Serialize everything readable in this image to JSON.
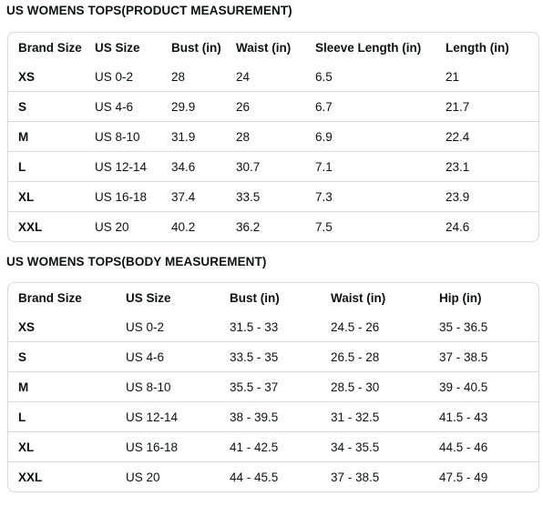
{
  "product": {
    "title": "US WOMENS TOPS(PRODUCT MEASUREMENT)",
    "headers": [
      "Brand Size",
      "US Size",
      "Bust (in)",
      "Waist (in)",
      "Sleeve Length (in)",
      "Length (in)"
    ],
    "rows": [
      [
        "XS",
        "US 0-2",
        "28",
        "24",
        "6.5",
        "21"
      ],
      [
        "S",
        "US 4-6",
        "29.9",
        "26",
        "6.7",
        "21.7"
      ],
      [
        "M",
        "US 8-10",
        "31.9",
        "28",
        "6.9",
        "22.4"
      ],
      [
        "L",
        "US 12-14",
        "34.6",
        "30.7",
        "7.1",
        "23.1"
      ],
      [
        "XL",
        "US 16-18",
        "37.4",
        "33.5",
        "7.3",
        "23.9"
      ],
      [
        "XXL",
        "US 20",
        "40.2",
        "36.2",
        "7.5",
        "24.6"
      ]
    ]
  },
  "body": {
    "title": "US WOMENS TOPS(BODY MEASUREMENT)",
    "headers": [
      "Brand Size",
      "US Size",
      "Bust (in)",
      "Waist (in)",
      "Hip (in)"
    ],
    "rows": [
      [
        "XS",
        "US 0-2",
        "31.5 - 33",
        "24.5 - 26",
        "35 - 36.5"
      ],
      [
        "S",
        "US 4-6",
        "33.5 - 35",
        "26.5 - 28",
        "37 - 38.5"
      ],
      [
        "M",
        "US 8-10",
        "35.5 - 37",
        "28.5 - 30",
        "39 - 40.5"
      ],
      [
        "L",
        "US 12-14",
        "38 - 39.5",
        "31 - 32.5",
        "41.5 - 43"
      ],
      [
        "XL",
        "US 16-18",
        "41 - 42.5",
        "34 - 35.5",
        "44.5 - 46"
      ],
      [
        "XXL",
        "US 20",
        "44 - 45.5",
        "37 - 38.5",
        "47.5 - 49"
      ]
    ]
  }
}
